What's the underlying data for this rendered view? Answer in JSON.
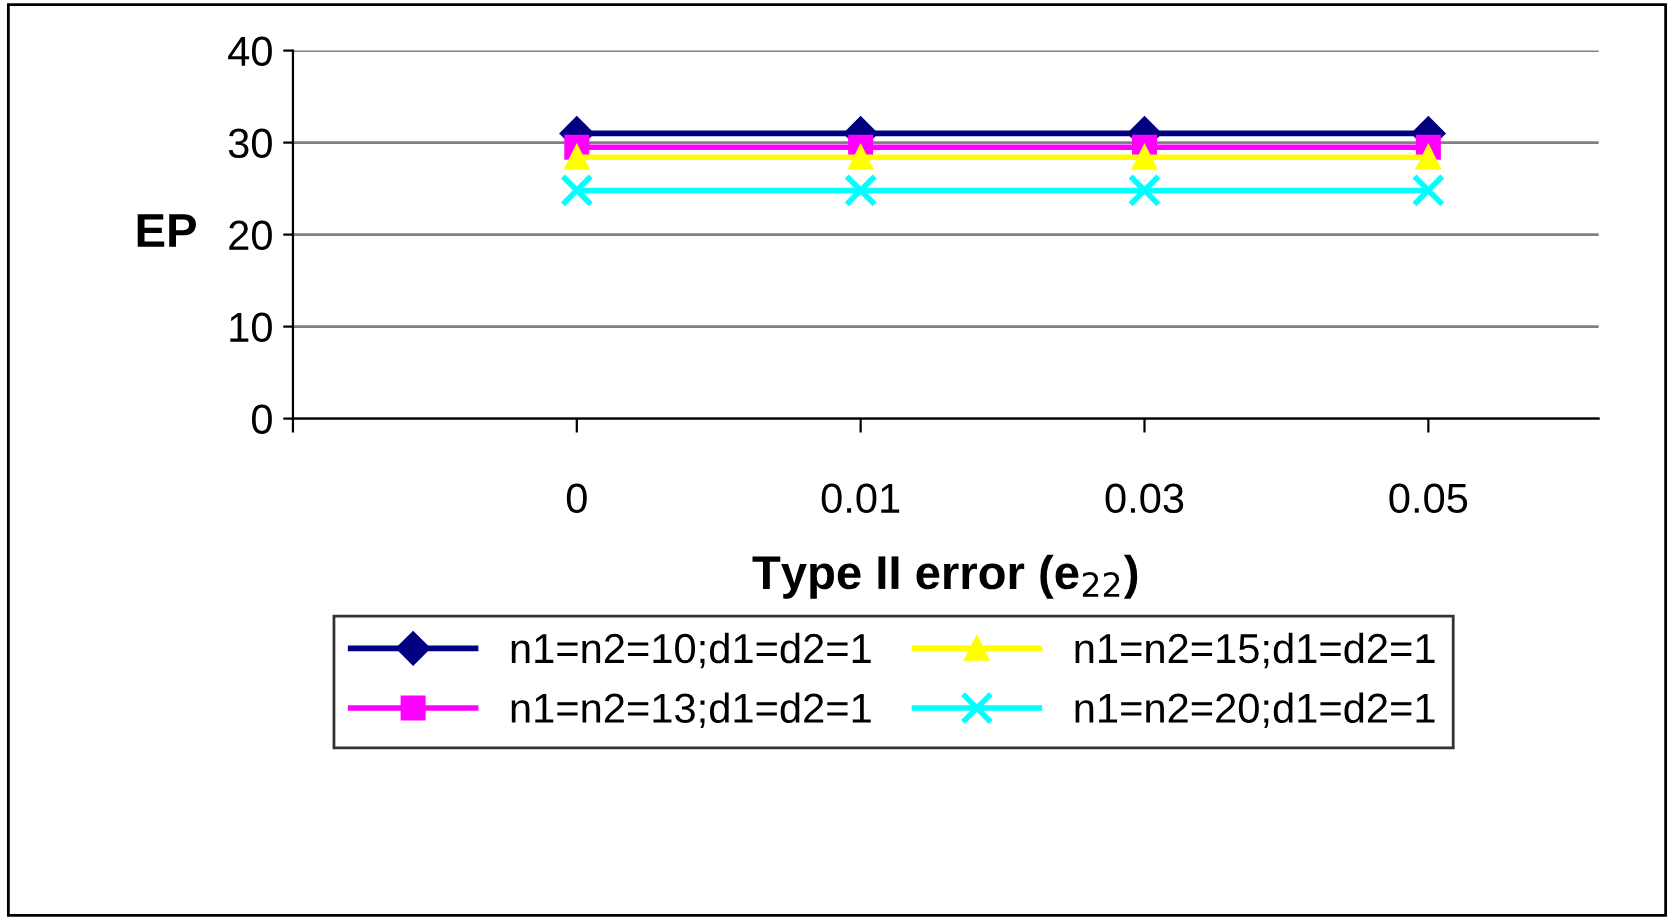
{
  "chart_data": {
    "type": "line",
    "xlabel": "Type II error (e$_{22}$)",
    "ylabel": "EP",
    "categories": [
      "0",
      "0.01",
      "0.03",
      "0.05"
    ],
    "series": [
      {
        "name": "n1=n2=10;d1=d2=1",
        "color": "#000080",
        "marker": "diamond",
        "values": [
          31.0,
          31.0,
          31.0,
          31.0
        ]
      },
      {
        "name": "n1=n2=13;d1=d2=1",
        "color": "#ff00ff",
        "marker": "square",
        "values": [
          29.5,
          29.5,
          29.5,
          29.5
        ]
      },
      {
        "name": "n1=n2=15;d1=d2=1",
        "color": "#ffff00",
        "marker": "triangle",
        "values": [
          28.4,
          28.4,
          28.4,
          28.4
        ]
      },
      {
        "name": "n1=n2=20;d1=d2=1",
        "color": "#00ffff",
        "marker": "cross",
        "values": [
          24.8,
          24.8,
          24.8,
          24.8
        ]
      }
    ],
    "ylim": [
      0,
      40
    ],
    "yticks": [
      0,
      10,
      20,
      30,
      40
    ],
    "grid": "y",
    "legend": "bottom",
    "line_style": "solid"
  }
}
